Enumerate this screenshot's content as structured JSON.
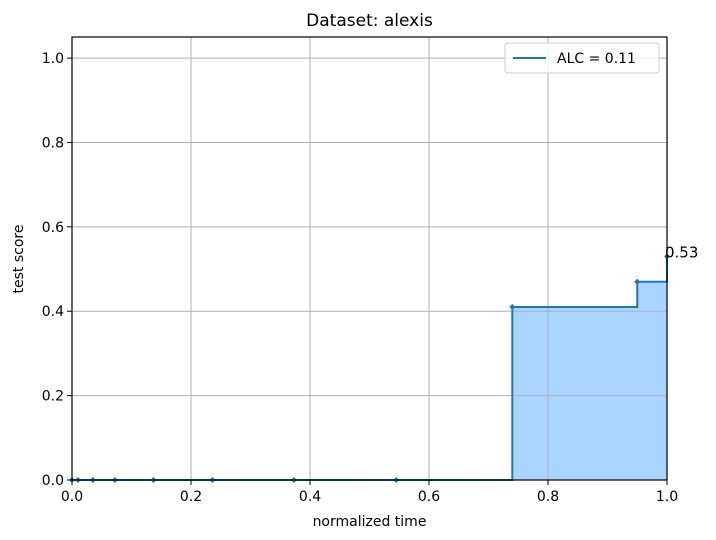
{
  "chart_data": {
    "type": "line",
    "drawstyle": "steps-post",
    "title": "Dataset: alexis",
    "xlabel": "normalized time",
    "ylabel": "test score",
    "xlim": [
      0.0,
      1.0
    ],
    "ylim": [
      0.0,
      1.05
    ],
    "x_ticks": [
      "0.0",
      "0.2",
      "0.4",
      "0.6",
      "0.8",
      "1.0"
    ],
    "y_ticks": [
      "0.0",
      "0.2",
      "0.4",
      "0.6",
      "0.8",
      "1.0"
    ],
    "grid": true,
    "legend_position": "top-right",
    "series": [
      {
        "name": "ALC = 0.11",
        "color": "#1f77b4",
        "fill_color": "#a8d4ff",
        "x": [
          0.0,
          0.01,
          0.035,
          0.072,
          0.137,
          0.236,
          0.373,
          0.545,
          0.74,
          0.95,
          1.0
        ],
        "y": [
          0.0,
          0.0,
          0.0,
          0.0,
          0.0,
          0.0,
          0.0,
          0.0,
          0.41,
          0.47,
          0.53
        ]
      }
    ],
    "annotations": [
      {
        "text": "0.53",
        "x": 1.0,
        "y": 0.53
      }
    ]
  }
}
